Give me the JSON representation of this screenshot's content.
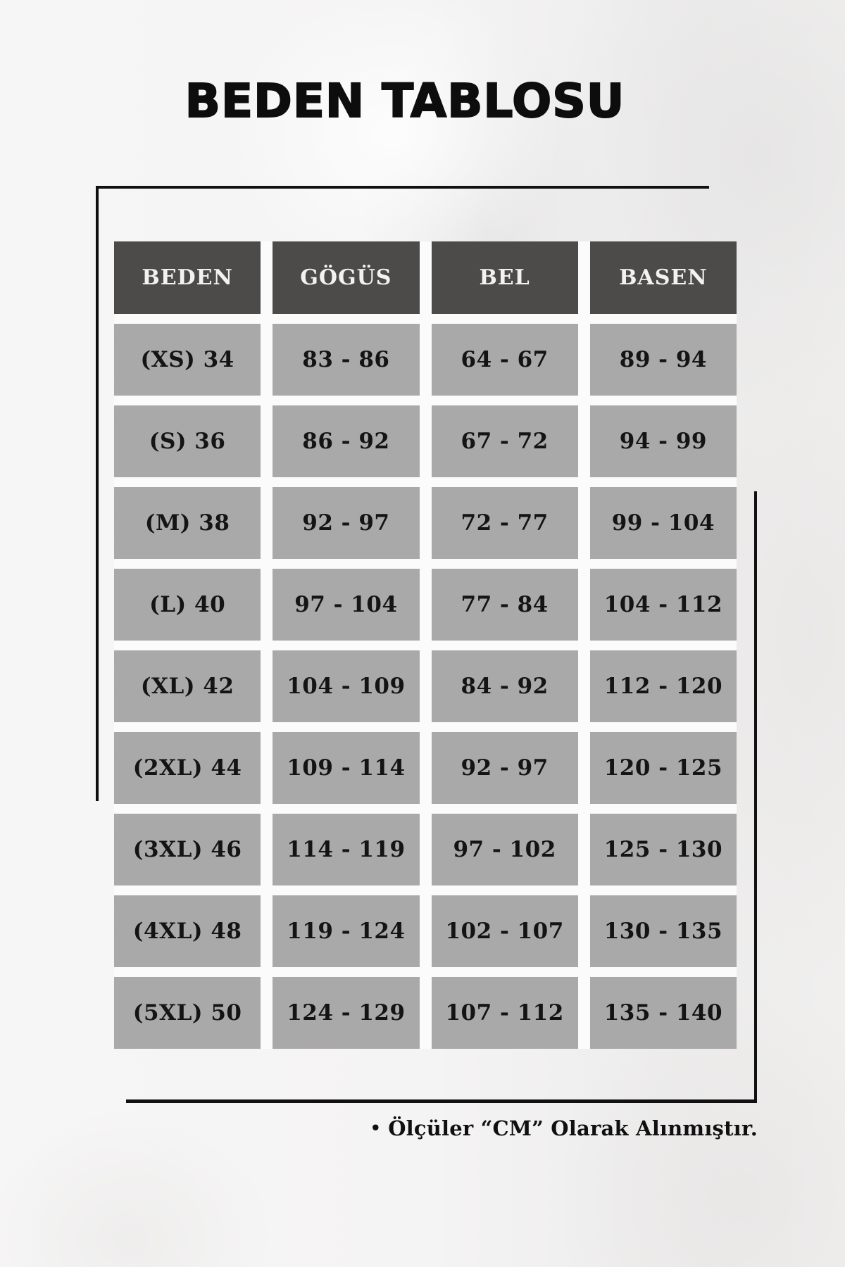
{
  "title": "BEDEN TABLOSU",
  "table": {
    "headers": [
      "BEDEN",
      "GÖGÜS",
      "BEL",
      "BASEN"
    ],
    "rows": [
      [
        "(XS) 34",
        "83 - 86",
        "64 - 67",
        "89 - 94"
      ],
      [
        "(S) 36",
        "86 - 92",
        "67 - 72",
        "94 - 99"
      ],
      [
        "(M) 38",
        "92 - 97",
        "72 - 77",
        "99 - 104"
      ],
      [
        "(L) 40",
        "97 - 104",
        "77 - 84",
        "104 - 112"
      ],
      [
        "(XL) 42",
        "104 - 109",
        "84 - 92",
        "112 - 120"
      ],
      [
        "(2XL) 44",
        "109 - 114",
        "92 - 97",
        "120 - 125"
      ],
      [
        "(3XL) 46",
        "114 - 119",
        "97 - 102",
        "125 - 130"
      ],
      [
        "(4XL) 48",
        "119 - 124",
        "102 - 107",
        "130 - 135"
      ],
      [
        "(5XL) 50",
        "124 - 129",
        "107 - 112",
        "135 - 140"
      ]
    ]
  },
  "note": {
    "bullet": "•",
    "text": "Ölçüler “CM” Olarak Alınmıştır."
  },
  "colors": {
    "header_bg": "#4d4a4a",
    "header_text": "#f3f1f1",
    "cell_bg": "#a9a9a9",
    "cell_text": "#141414",
    "accent_line": "#111111"
  }
}
